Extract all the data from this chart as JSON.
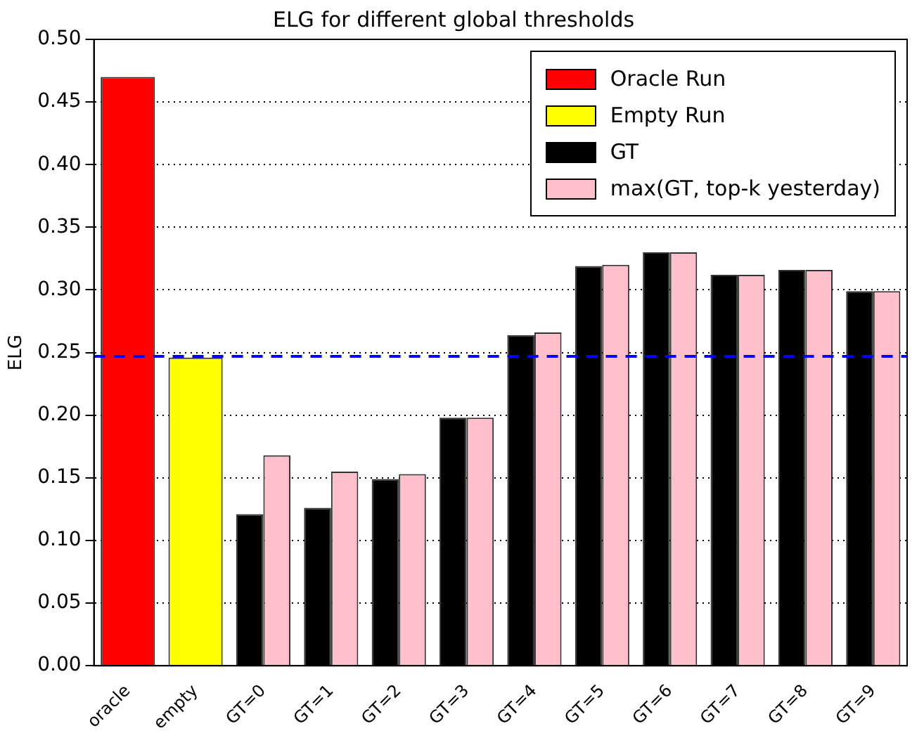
{
  "chart_data": {
    "type": "bar",
    "title": "ELG for different global thresholds",
    "ylabel": "ELG",
    "categories": [
      "oracle",
      "empty",
      "GT=0",
      "GT=1",
      "GT=2",
      "GT=3",
      "GT=4",
      "GT=5",
      "GT=6",
      "GT=7",
      "GT=8",
      "GT=9"
    ],
    "series": [
      {
        "name": "Oracle Run",
        "color": "#ff0000",
        "values": [
          0.47,
          null,
          null,
          null,
          null,
          null,
          null,
          null,
          null,
          null,
          null,
          null
        ]
      },
      {
        "name": "Empty Run",
        "color": "#ffff00",
        "values": [
          null,
          0.246,
          null,
          null,
          null,
          null,
          null,
          null,
          null,
          null,
          null,
          null
        ]
      },
      {
        "name": "GT",
        "color": "#000000",
        "values": [
          null,
          null,
          0.121,
          0.126,
          0.149,
          0.198,
          0.264,
          0.319,
          0.33,
          0.312,
          0.316,
          0.299
        ]
      },
      {
        "name": "max(GT, top-k yesterday)",
        "color": "#ffc0cb",
        "values": [
          null,
          null,
          0.168,
          0.155,
          0.153,
          0.198,
          0.266,
          0.32,
          0.33,
          0.312,
          0.316,
          0.299
        ]
      }
    ],
    "ylim": [
      0,
      0.5
    ],
    "yticks": [
      {
        "value": 0,
        "label": "0.00"
      },
      {
        "value": 0.05,
        "label": "0.05"
      },
      {
        "value": 0.1,
        "label": "0.10"
      },
      {
        "value": 0.15,
        "label": "0.15"
      },
      {
        "value": 0.2,
        "label": "0.20"
      },
      {
        "value": 0.25,
        "label": "0.25"
      },
      {
        "value": 0.3,
        "label": "0.30"
      },
      {
        "value": 0.35,
        "label": "0.35"
      },
      {
        "value": 0.4,
        "label": "0.40"
      },
      {
        "value": 0.45,
        "label": "0.45"
      },
      {
        "value": 0.5,
        "label": "0.50"
      }
    ],
    "ref_lines": [
      {
        "axis": "y",
        "value": 0.247,
        "color": "#0000ff",
        "line_style": "dashed"
      }
    ],
    "grid": "y",
    "legend": "top right"
  }
}
